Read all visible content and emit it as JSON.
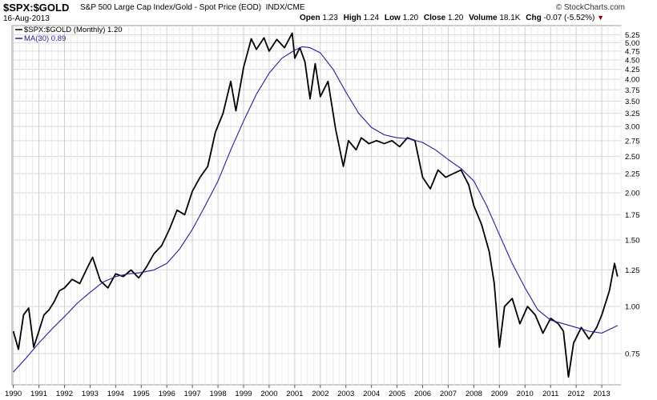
{
  "header": {
    "symbol": "$SPX:$GOLD",
    "description": "S&P 500 Large Cap Index/Gold - Spot Price (EOD)",
    "exchange": "INDX/CME",
    "date": "16-Aug-2013",
    "brand": "© StockCharts.com",
    "open_label": "Open",
    "open": "1.23",
    "high_label": "High",
    "high": "1.24",
    "low_label": "Low",
    "low": "1.20",
    "close_label": "Close",
    "close": "1.20",
    "volume_label": "Volume",
    "volume": "18.1K",
    "chg_label": "Chg",
    "chg": "-0.07 (-5.52%)",
    "down_icon": "triangle-down"
  },
  "chart_data": {
    "type": "line",
    "scale": "log",
    "ylim": [
      0.62,
      5.55
    ],
    "xlim": [
      1989.95,
      2013.75
    ],
    "y_ticks": [
      "0.75",
      "1.00",
      "1.25",
      "1.50",
      "1.75",
      "2.00",
      "2.25",
      "2.50",
      "2.75",
      "3.00",
      "3.25",
      "3.50",
      "3.75",
      "4.00",
      "4.25",
      "4.50",
      "4.75",
      "5.00",
      "5.25"
    ],
    "x_ticks": [
      "1990",
      "1991",
      "1992",
      "1993",
      "1994",
      "1995",
      "1996",
      "1997",
      "1998",
      "1999",
      "2000",
      "2001",
      "2002",
      "2003",
      "2004",
      "2005",
      "2006",
      "2007",
      "2008",
      "2009",
      "2010",
      "2011",
      "2012",
      "2013"
    ],
    "grid": true,
    "legend_position": "top-left",
    "colors": {
      "price": "#000000",
      "ma": "#1f1f9a",
      "grid": "#d9d9d9"
    },
    "series": [
      {
        "name": "$SPX:$GOLD (Monthly)",
        "legend_value": "1.20",
        "x": [
          1990.0,
          1990.2,
          1990.4,
          1990.6,
          1990.8,
          1991.0,
          1991.2,
          1991.4,
          1991.6,
          1991.8,
          1992.0,
          1992.3,
          1992.6,
          1992.9,
          1993.1,
          1993.4,
          1993.7,
          1994.0,
          1994.3,
          1994.6,
          1994.9,
          1995.2,
          1995.5,
          1995.8,
          1996.1,
          1996.4,
          1996.7,
          1997.0,
          1997.3,
          1997.6,
          1997.9,
          1998.2,
          1998.5,
          1998.7,
          1999.0,
          1999.3,
          1999.5,
          1999.8,
          2000.0,
          2000.3,
          2000.6,
          2000.9,
          2001.0,
          2001.2,
          2001.4,
          2001.6,
          2001.8,
          2002.0,
          2002.3,
          2002.6,
          2002.9,
          2003.1,
          2003.4,
          2003.6,
          2003.9,
          2004.2,
          2004.5,
          2004.8,
          2005.1,
          2005.4,
          2005.7,
          2006.0,
          2006.3,
          2006.6,
          2006.9,
          2007.2,
          2007.5,
          2007.8,
          2008.0,
          2008.3,
          2008.6,
          2008.8,
          2009.0,
          2009.2,
          2009.5,
          2009.8,
          2010.1,
          2010.4,
          2010.7,
          2011.0,
          2011.3,
          2011.5,
          2011.7,
          2011.9,
          2012.2,
          2012.5,
          2012.8,
          2013.0,
          2013.3,
          2013.5,
          2013.62
        ],
        "y": [
          0.86,
          0.77,
          0.95,
          0.99,
          0.78,
          0.86,
          0.95,
          0.98,
          1.03,
          1.1,
          1.12,
          1.18,
          1.15,
          1.27,
          1.35,
          1.17,
          1.12,
          1.22,
          1.2,
          1.25,
          1.19,
          1.27,
          1.38,
          1.45,
          1.6,
          1.8,
          1.75,
          2.02,
          2.2,
          2.35,
          2.9,
          3.25,
          3.95,
          3.3,
          4.3,
          5.12,
          4.8,
          5.15,
          4.75,
          5.1,
          4.85,
          5.3,
          4.55,
          4.85,
          4.45,
          3.55,
          4.4,
          3.6,
          3.95,
          2.95,
          2.35,
          2.75,
          2.6,
          2.8,
          2.7,
          2.75,
          2.7,
          2.75,
          2.65,
          2.8,
          2.75,
          2.2,
          2.05,
          2.3,
          2.2,
          2.25,
          2.3,
          2.1,
          1.85,
          1.65,
          1.4,
          1.15,
          0.78,
          1.0,
          1.05,
          0.9,
          1.0,
          0.95,
          0.85,
          0.93,
          0.9,
          0.86,
          0.65,
          0.8,
          0.88,
          0.82,
          0.88,
          0.95,
          1.1,
          1.3,
          1.2
        ]
      },
      {
        "name": "MA(30)",
        "legend_value": "0.89",
        "x": [
          1990.0,
          1990.5,
          1991.0,
          1991.5,
          1992.0,
          1992.5,
          1993.0,
          1993.5,
          1994.0,
          1994.5,
          1995.0,
          1995.5,
          1996.0,
          1996.5,
          1997.0,
          1997.5,
          1998.0,
          1998.5,
          1999.0,
          1999.5,
          2000.0,
          2000.5,
          2001.0,
          2001.3,
          2001.6,
          2002.0,
          2002.5,
          2003.0,
          2003.5,
          2004.0,
          2004.5,
          2005.0,
          2005.5,
          2006.0,
          2006.5,
          2007.0,
          2007.5,
          2008.0,
          2008.5,
          2009.0,
          2009.5,
          2010.0,
          2010.5,
          2011.0,
          2011.5,
          2012.0,
          2012.5,
          2013.0,
          2013.62
        ],
        "y": [
          0.67,
          0.73,
          0.8,
          0.87,
          0.94,
          1.02,
          1.09,
          1.16,
          1.2,
          1.22,
          1.23,
          1.25,
          1.3,
          1.42,
          1.6,
          1.85,
          2.15,
          2.6,
          3.1,
          3.65,
          4.15,
          4.55,
          4.78,
          4.88,
          4.85,
          4.7,
          4.25,
          3.7,
          3.25,
          2.98,
          2.85,
          2.8,
          2.78,
          2.72,
          2.6,
          2.45,
          2.32,
          2.15,
          1.85,
          1.55,
          1.3,
          1.12,
          0.98,
          0.92,
          0.9,
          0.88,
          0.86,
          0.85,
          0.89
        ]
      }
    ]
  }
}
